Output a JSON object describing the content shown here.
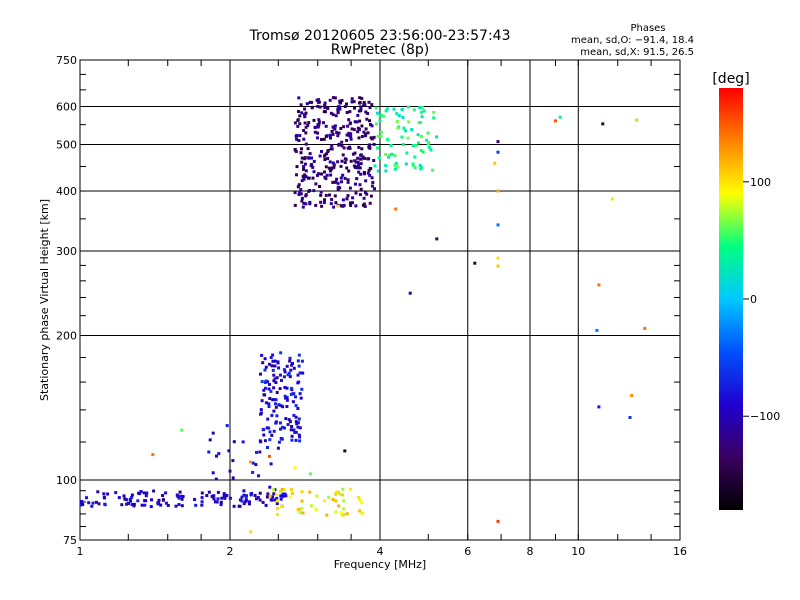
{
  "chart_data": {
    "type": "scatter",
    "title": "Tromsø 20120605 23:56:00-23:57:43",
    "subtitle": "RwPretec (8p)",
    "xlabel": "Frequency [MHz]",
    "ylabel": "Stationary phase Virtual Height [km]",
    "xscale": "log2",
    "yscale": "log",
    "xlim": [
      1,
      16
    ],
    "ylim": [
      75,
      750
    ],
    "xticks": [
      "1",
      "2",
      "4",
      "6",
      "8",
      "10",
      "16"
    ],
    "yticks": [
      "75",
      "100",
      "200",
      "300",
      "400",
      "500",
      "600",
      "750"
    ],
    "grid": true,
    "phase_legend": {
      "title": "Phases",
      "line1": "mean, sd,O: −91.4, 18.4",
      "line2": "mean, sd,X:  91.5, 26.5"
    },
    "colorbar": {
      "label": "[deg]",
      "ticks": [
        "100",
        "0",
        "−100"
      ],
      "range": [
        -180,
        180
      ],
      "colors": [
        "#000000",
        "#3a0060",
        "#2000d0",
        "#0050ff",
        "#00c8ff",
        "#00ff80",
        "#ffff00",
        "#ff8000",
        "#ff0000"
      ]
    },
    "series": [
      {
        "x_range": [
          1.0,
          2.6
        ],
        "y_range": [
          88,
          95
        ],
        "phase": -95,
        "count": 140
      },
      {
        "x_range": [
          2.3,
          2.8
        ],
        "y_range": [
          120,
          185
        ],
        "phase": -85,
        "count": 140
      },
      {
        "x_range": [
          1.8,
          2.6
        ],
        "y_range": [
          95,
          130
        ],
        "phase": -90,
        "count": 30
      },
      {
        "x_range": [
          2.7,
          3.9
        ],
        "y_range": [
          370,
          630
        ],
        "phase": -125,
        "count": 360
      },
      {
        "x_range": [
          3.9,
          5.2
        ],
        "y_range": [
          440,
          600
        ],
        "phase": 40,
        "count": 80
      },
      {
        "x_range": [
          2.4,
          3.7
        ],
        "y_range": [
          84,
          96
        ],
        "phase": 95,
        "count": 50
      }
    ],
    "points": [
      {
        "x": 4.3,
        "y": 367,
        "phase": 140
      },
      {
        "x": 3.3,
        "y": 372,
        "phase": 100
      },
      {
        "x": 5.2,
        "y": 318,
        "phase": -130
      },
      {
        "x": 4.6,
        "y": 245,
        "phase": -110
      },
      {
        "x": 6.2,
        "y": 283,
        "phase": -150
      },
      {
        "x": 6.9,
        "y": 507,
        "phase": -110
      },
      {
        "x": 6.9,
        "y": 482,
        "phase": -60
      },
      {
        "x": 6.8,
        "y": 457,
        "phase": 110
      },
      {
        "x": 6.9,
        "y": 400,
        "phase": 120
      },
      {
        "x": 6.9,
        "y": 340,
        "phase": -30
      },
      {
        "x": 6.9,
        "y": 290,
        "phase": 100
      },
      {
        "x": 6.9,
        "y": 279,
        "phase": 110
      },
      {
        "x": 6.9,
        "y": 82,
        "phase": 160
      },
      {
        "x": 9.0,
        "y": 560,
        "phase": 150
      },
      {
        "x": 9.2,
        "y": 570,
        "phase": 30
      },
      {
        "x": 11.2,
        "y": 552,
        "phase": -150
      },
      {
        "x": 11.7,
        "y": 385,
        "phase": 100
      },
      {
        "x": 11.0,
        "y": 255,
        "phase": 140
      },
      {
        "x": 10.9,
        "y": 205,
        "phase": -30
      },
      {
        "x": 13.6,
        "y": 207,
        "phase": 140
      },
      {
        "x": 11.0,
        "y": 142,
        "phase": -80
      },
      {
        "x": 12.8,
        "y": 150,
        "phase": 130
      },
      {
        "x": 12.7,
        "y": 135,
        "phase": -60
      },
      {
        "x": 13.1,
        "y": 562,
        "phase": 110
      },
      {
        "x": 1.4,
        "y": 113,
        "phase": 140
      },
      {
        "x": 1.6,
        "y": 127,
        "phase": 60
      },
      {
        "x": 2.2,
        "y": 109,
        "phase": 130
      },
      {
        "x": 2.4,
        "y": 112,
        "phase": 150
      },
      {
        "x": 3.4,
        "y": 115,
        "phase": -160
      },
      {
        "x": 2.9,
        "y": 103,
        "phase": 60
      },
      {
        "x": 2.7,
        "y": 106,
        "phase": 90
      },
      {
        "x": 2.2,
        "y": 78,
        "phase": 100
      }
    ]
  }
}
